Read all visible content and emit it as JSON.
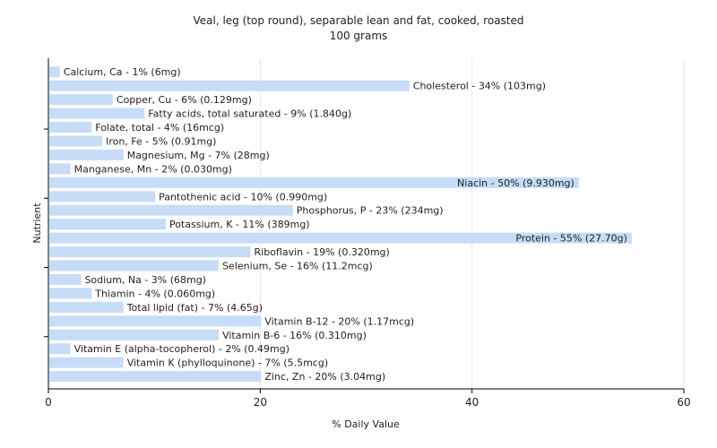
{
  "chart_data": {
    "type": "bar",
    "orientation": "horizontal",
    "title": "Veal, leg (top round), separable lean and fat, cooked, roasted",
    "subtitle": "100 grams",
    "xlabel": "% Daily Value",
    "ylabel": "Nutrient",
    "xlim": [
      0,
      60
    ],
    "xticks": [
      "0",
      "20",
      "40",
      "60"
    ],
    "grid": true,
    "bar_color": "#c6dcf7",
    "bars": [
      {
        "category": "Calcium, Ca",
        "value": 1,
        "label": "Calcium, Ca - 1% (6mg)"
      },
      {
        "category": "Cholesterol",
        "value": 34,
        "label": "Cholesterol - 34% (103mg)"
      },
      {
        "category": "Copper, Cu",
        "value": 6,
        "label": "Copper, Cu - 6% (0.129mg)"
      },
      {
        "category": "Fatty acids, total saturated",
        "value": 9,
        "label": "Fatty acids, total saturated - 9% (1.840g)"
      },
      {
        "category": "Folate, total",
        "value": 4,
        "label": "Folate, total - 4% (16mcg)"
      },
      {
        "category": "Iron, Fe",
        "value": 5,
        "label": "Iron, Fe - 5% (0.91mg)"
      },
      {
        "category": "Magnesium, Mg",
        "value": 7,
        "label": "Magnesium, Mg - 7% (28mg)"
      },
      {
        "category": "Manganese, Mn",
        "value": 2,
        "label": "Manganese, Mn - 2% (0.030mg)"
      },
      {
        "category": "Niacin",
        "value": 50,
        "label": "Niacin - 50% (9.930mg)"
      },
      {
        "category": "Pantothenic acid",
        "value": 10,
        "label": "Pantothenic acid - 10% (0.990mg)"
      },
      {
        "category": "Phosphorus, P",
        "value": 23,
        "label": "Phosphorus, P - 23% (234mg)"
      },
      {
        "category": "Potassium, K",
        "value": 11,
        "label": "Potassium, K - 11% (389mg)"
      },
      {
        "category": "Protein",
        "value": 55,
        "label": "Protein - 55% (27.70g)"
      },
      {
        "category": "Riboflavin",
        "value": 19,
        "label": "Riboflavin - 19% (0.320mg)"
      },
      {
        "category": "Selenium, Se",
        "value": 16,
        "label": "Selenium, Se - 16% (11.2mcg)"
      },
      {
        "category": "Sodium, Na",
        "value": 3,
        "label": "Sodium, Na - 3% (68mg)"
      },
      {
        "category": "Thiamin",
        "value": 4,
        "label": "Thiamin - 4% (0.060mg)"
      },
      {
        "category": "Total lipid (fat)",
        "value": 7,
        "label": "Total lipid (fat) - 7% (4.65g)"
      },
      {
        "category": "Vitamin B-12",
        "value": 20,
        "label": "Vitamin B-12 - 20% (1.17mcg)"
      },
      {
        "category": "Vitamin B-6",
        "value": 16,
        "label": "Vitamin B-6 - 16% (0.310mg)"
      },
      {
        "category": "Vitamin E (alpha-tocopherol)",
        "value": 2,
        "label": "Vitamin E (alpha-tocopherol) - 2% (0.49mg)"
      },
      {
        "category": "Vitamin K (phylloquinone)",
        "value": 7,
        "label": "Vitamin K (phylloquinone) - 7% (5.5mcg)"
      },
      {
        "category": "Zinc, Zn",
        "value": 20,
        "label": "Zinc, Zn - 20% (3.04mg)"
      }
    ]
  }
}
